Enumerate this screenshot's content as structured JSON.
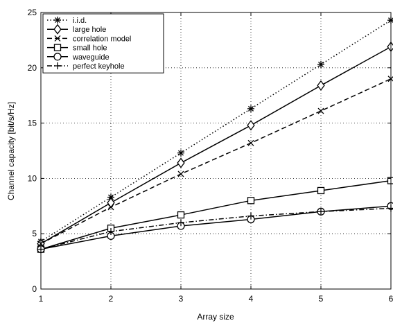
{
  "chart_data": {
    "type": "line",
    "xlabel": "Array size",
    "ylabel": "Channel capacity [bit/s/Hz]",
    "xlim": [
      1,
      6
    ],
    "ylim": [
      0,
      25
    ],
    "xticks": [
      1,
      2,
      3,
      4,
      5,
      6
    ],
    "yticks": [
      0,
      5,
      10,
      15,
      20,
      25
    ],
    "grid": true,
    "legend_position": "top-left",
    "x": [
      1,
      2,
      3,
      4,
      5,
      6
    ],
    "series": [
      {
        "name": "i.i.d.",
        "marker": "asterisk",
        "dash": "dotted",
        "values": [
          4.3,
          8.3,
          12.3,
          16.3,
          20.3,
          24.3
        ]
      },
      {
        "name": "large hole",
        "marker": "diamond",
        "dash": "solid",
        "values": [
          4.1,
          7.8,
          11.4,
          14.8,
          18.4,
          21.9
        ]
      },
      {
        "name": "correlation model",
        "marker": "x",
        "dash": "dashed",
        "values": [
          4.1,
          7.4,
          10.4,
          13.2,
          16.1,
          19.0
        ]
      },
      {
        "name": "small hole",
        "marker": "square",
        "dash": "solid",
        "values": [
          3.6,
          5.5,
          6.7,
          8.0,
          8.9,
          9.8
        ]
      },
      {
        "name": "waveguide",
        "marker": "circle",
        "dash": "solid",
        "values": [
          3.6,
          4.8,
          5.7,
          6.3,
          7.0,
          7.5
        ]
      },
      {
        "name": "perfect keyhole",
        "marker": "plus",
        "dash": "dashdot",
        "values": [
          3.6,
          5.2,
          6.0,
          6.6,
          7.0,
          7.3
        ]
      }
    ]
  }
}
